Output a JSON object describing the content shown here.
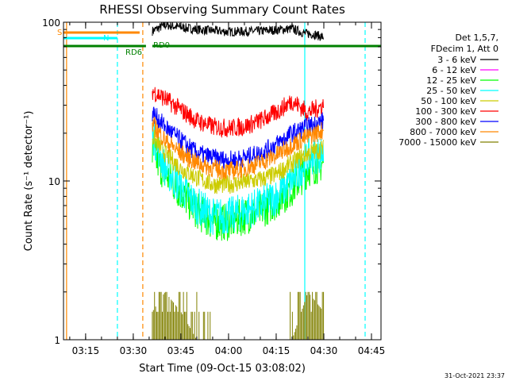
{
  "chart_data": {
    "type": "line",
    "title": "RHESSI Observing Summary Count Rates",
    "xlabel": "Start Time (09-Oct-15 03:08:02)",
    "ylabel": "Count Rate (s⁻¹ detector⁻¹)",
    "y_scale": "log",
    "ylim": [
      1,
      100
    ],
    "xlim": [
      "03:08:02",
      "04:48:00"
    ],
    "x_ticks": [
      "03:15",
      "03:30",
      "03:45",
      "04:00",
      "04:15",
      "04:30",
      "04:45"
    ],
    "y_ticks": [
      "1",
      "10",
      "100"
    ],
    "legend_header": [
      "Det 1,5,7,",
      "FDecim 1, Att 0"
    ],
    "legend_position": "right",
    "timestamp": "31-Oct-2021 23:37",
    "series": [
      {
        "name": "3 - 6 keV",
        "color": "#000000",
        "x": [
          "03:36",
          "03:40",
          "03:50",
          "04:00",
          "04:10",
          "04:20",
          "04:24",
          "04:27",
          "04:30"
        ],
        "values": [
          88,
          96,
          90,
          87,
          88,
          91,
          85,
          84,
          80
        ]
      },
      {
        "name": "6 - 12 keV",
        "color": "#ff00ff",
        "x": [],
        "values": []
      },
      {
        "name": "12 - 25 keV",
        "color": "#00ff00",
        "x": [
          "03:36",
          "03:40",
          "03:45",
          "03:50",
          "03:55",
          "04:00",
          "04:05",
          "04:10",
          "04:15",
          "04:20",
          "04:25",
          "04:30"
        ],
        "values": [
          15,
          11,
          8.5,
          6.5,
          5.5,
          5.5,
          6,
          6.5,
          7.5,
          9,
          12,
          13
        ]
      },
      {
        "name": "25 - 50 keV",
        "color": "#00ffff",
        "x": [
          "03:36",
          "03:40",
          "03:45",
          "03:50",
          "03:55",
          "04:00",
          "04:05",
          "04:10",
          "04:15",
          "04:20",
          "04:25",
          "04:30"
        ],
        "values": [
          20,
          12,
          9,
          7,
          6,
          6,
          6.5,
          7,
          8,
          10,
          14,
          15
        ]
      },
      {
        "name": "50 - 100 keV",
        "color": "#cccc00",
        "x": [
          "03:36",
          "03:40",
          "03:45",
          "03:50",
          "03:55",
          "04:00",
          "04:05",
          "04:10",
          "04:15",
          "04:20",
          "04:25",
          "04:30"
        ],
        "values": [
          19,
          15,
          12,
          10.5,
          9.5,
          9.5,
          9.8,
          10.2,
          11,
          13,
          15,
          16
        ]
      },
      {
        "name": "100 - 300 keV",
        "color": "#ff0000",
        "x": [
          "03:36",
          "03:40",
          "03:45",
          "03:50",
          "03:55",
          "04:00",
          "04:05",
          "04:10",
          "04:15",
          "04:20",
          "04:25",
          "04:30"
        ],
        "values": [
          37,
          33,
          28,
          24,
          22,
          21.5,
          22,
          24,
          27,
          32,
          27,
          30
        ]
      },
      {
        "name": "300 - 800 keV",
        "color": "#0000ff",
        "x": [
          "03:36",
          "03:40",
          "03:45",
          "03:50",
          "03:55",
          "04:00",
          "04:05",
          "04:10",
          "04:15",
          "04:20",
          "04:25",
          "04:30"
        ],
        "values": [
          27,
          22,
          18,
          15,
          14,
          13.5,
          14,
          15,
          17,
          20,
          22,
          24
        ]
      },
      {
        "name": "800 - 7000 keV",
        "color": "#ff8800",
        "x": [
          "03:36",
          "03:40",
          "03:45",
          "03:50",
          "03:55",
          "04:00",
          "04:05",
          "04:10",
          "04:15",
          "04:20",
          "04:25",
          "04:30"
        ],
        "values": [
          23,
          18,
          15,
          13,
          12,
          11.5,
          12,
          13,
          14.5,
          17,
          19,
          21
        ]
      },
      {
        "name": "7000 - 15000 keV",
        "color": "#808000",
        "x": [
          "03:36",
          "03:40",
          "03:45",
          "03:50",
          "04:20",
          "04:25",
          "04:30"
        ],
        "values": [
          1.5,
          2,
          1.5,
          1,
          1,
          2,
          1.5
        ]
      }
    ],
    "flag_bars": [
      {
        "label": "S",
        "color": "#ff8800",
        "x_start": "03:08:02",
        "x_end": "03:32"
      },
      {
        "label": "N",
        "color": "#00ffff",
        "x_start": "03:08:02",
        "x_end": "03:25"
      },
      {
        "label": "RD6",
        "color": "#008000",
        "x_start": "03:08:02",
        "x_end": "03:34"
      },
      {
        "label": "RD0",
        "color": "#008000",
        "x_start": "03:36",
        "x_end": "04:48"
      }
    ],
    "vertical_markers": [
      {
        "x": "03:09",
        "color": "#ff8800",
        "style": "solid"
      },
      {
        "x": "03:25",
        "color": "#00ffff",
        "style": "dashed"
      },
      {
        "x": "03:33",
        "color": "#ff8800",
        "style": "dashed"
      },
      {
        "x": "04:24",
        "color": "#00ffff",
        "style": "solid"
      },
      {
        "x": "04:43",
        "color": "#00ffff",
        "style": "dashed"
      }
    ]
  }
}
